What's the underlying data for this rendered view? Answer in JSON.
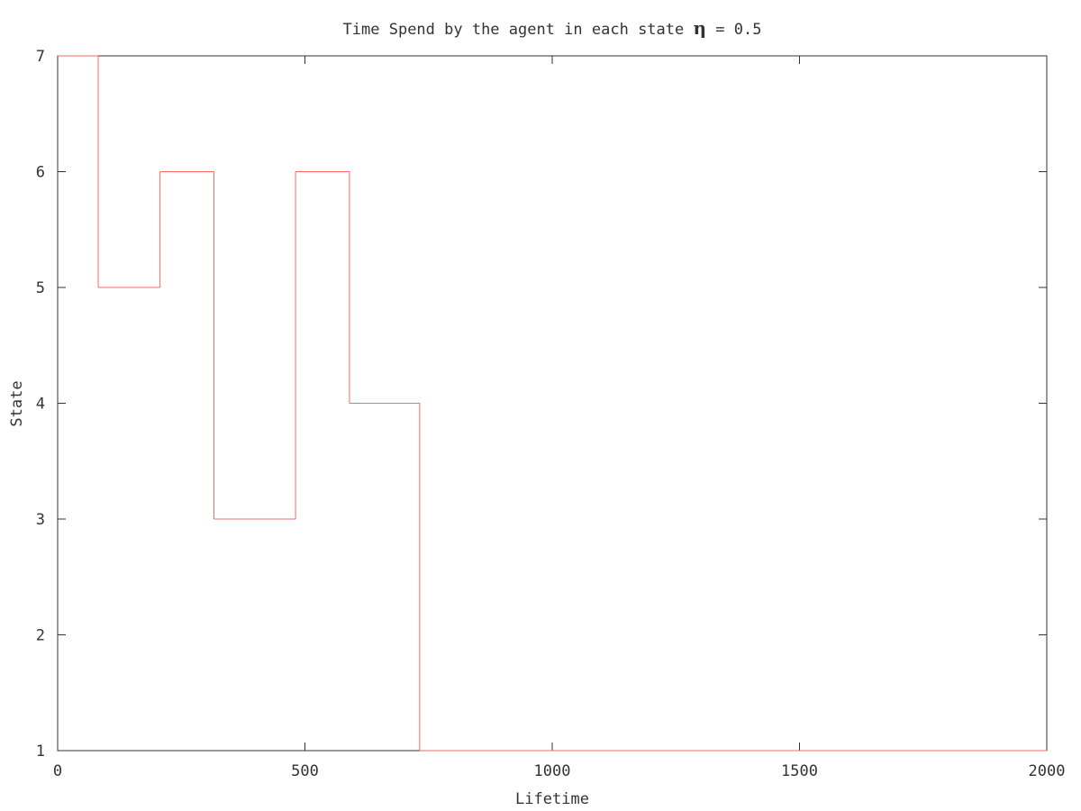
{
  "chart_data": {
    "type": "line",
    "title_prefix": "Time Spend by the agent in each state ",
    "title_symbol": "η",
    "title_suffix": " = 0.5",
    "xlabel": "Lifetime",
    "ylabel": "State",
    "xlim": [
      0,
      2000
    ],
    "ylim": [
      1,
      7
    ],
    "xticks": [
      0,
      500,
      1000,
      1500,
      2000
    ],
    "yticks": [
      1,
      2,
      3,
      4,
      5,
      6,
      7
    ],
    "grid": false,
    "legend": "none",
    "series": [
      {
        "color": "#ff6666",
        "step": true,
        "x": [
          0,
          82,
          207,
          316,
          481,
          590,
          732,
          2000
        ],
        "y": [
          7,
          5,
          6,
          3,
          6,
          4,
          1,
          1
        ]
      }
    ]
  }
}
